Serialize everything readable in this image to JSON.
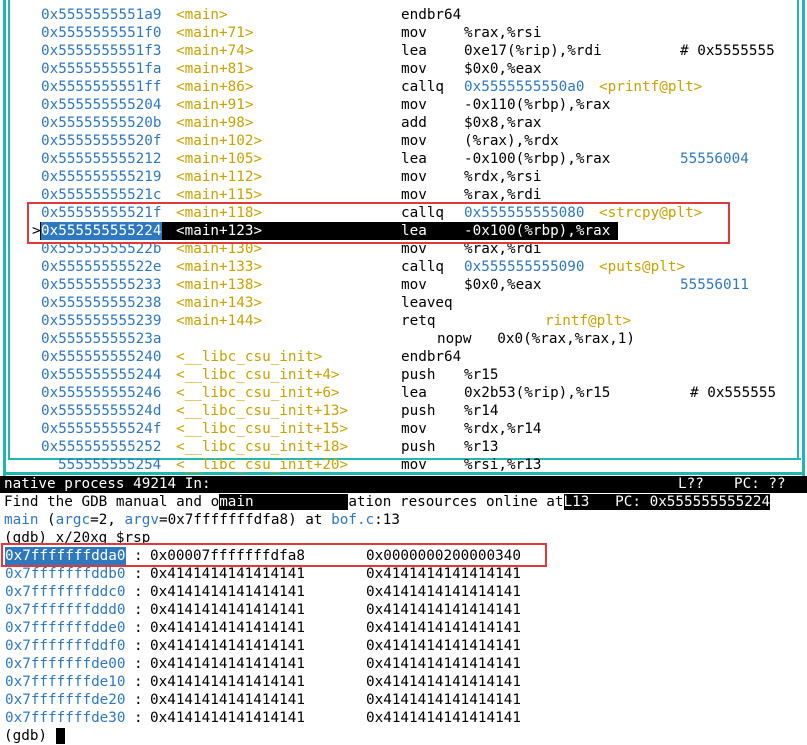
{
  "asm": {
    "lines": [
      {
        "addr": "0x5555555551a9",
        "sym": "<main>",
        "op": "endbr64",
        "args": "",
        "tgt": "",
        "symtgt": "",
        "cmt": ""
      },
      {
        "addr": "0x5555555551f0",
        "sym": "<main+71>",
        "op": "mov",
        "args": "%rax,%rsi",
        "tgt": "",
        "symtgt": "",
        "cmt": ""
      },
      {
        "addr": "0x5555555551f3",
        "sym": "<main+74>",
        "op": "lea",
        "args": "0xe17(%rip),%rdi",
        "tgt": "",
        "symtgt": "",
        "cmt": "# 0x5555555"
      },
      {
        "addr": "0x5555555551fa",
        "sym": "<main+81>",
        "op": "mov",
        "args": "$0x0,%eax",
        "tgt": "",
        "symtgt": "",
        "cmt": ""
      },
      {
        "addr": "0x5555555551ff",
        "sym": "<main+86>",
        "op": "callq",
        "args": "",
        "tgt": "0x5555555550a0",
        "symtgt": "<printf@plt>",
        "cmt": ""
      },
      {
        "addr": "0x555555555204",
        "sym": "<main+91>",
        "op": "mov",
        "args": "-0x110(%rbp),%rax",
        "tgt": "",
        "symtgt": "",
        "cmt": ""
      },
      {
        "addr": "0x55555555520b",
        "sym": "<main+98>",
        "op": "add",
        "args": "$0x8,%rax",
        "tgt": "",
        "symtgt": "",
        "cmt": ""
      },
      {
        "addr": "0x55555555520f",
        "sym": "<main+102>",
        "op": "mov",
        "args": "(%rax),%rdx",
        "tgt": "",
        "symtgt": "",
        "cmt": ""
      },
      {
        "addr": "0x555555555212",
        "sym": "<main+105>",
        "op": "lea",
        "args": "-0x100(%rbp),%rax",
        "tgt": "",
        "symtgt": "",
        "cmt": "55556004"
      },
      {
        "addr": "0x555555555219",
        "sym": "<main+112>",
        "op": "mov",
        "args": "%rdx,%rsi",
        "tgt": "",
        "symtgt": "",
        "cmt": ""
      },
      {
        "addr": "0x55555555521c",
        "sym": "<main+115>",
        "op": "mov",
        "args": "%rax,%rdi",
        "tgt": "",
        "symtgt": "",
        "cmt": ""
      },
      {
        "addr": "0x55555555521f",
        "sym": "<main+118>",
        "op": "callq",
        "args": "",
        "tgt": "0x555555555080",
        "symtgt": "<strcpy@plt>",
        "cmt": ""
      },
      {
        "addr": "0x555555555224",
        "sym": "<main+123>",
        "op": "lea",
        "args": "-0x100(%rbp),%rax",
        "tgt": "",
        "symtgt": "",
        "cmt": "",
        "current": true,
        "marker": ">"
      },
      {
        "addr": "0x55555555522b",
        "sym": "<main+130>",
        "op": "mov",
        "args": "%rax,%rdi",
        "tgt": "",
        "symtgt": "",
        "cmt": ""
      },
      {
        "addr": "0x55555555522e",
        "sym": "<main+133>",
        "op": "callq",
        "args": "",
        "tgt": "0x555555555090",
        "symtgt": "<puts@plt>",
        "cmt": ""
      },
      {
        "addr": "0x555555555233",
        "sym": "<main+138>",
        "op": "mov",
        "args": "$0x0,%eax",
        "tgt": "",
        "symtgt": "",
        "cmt": "55556011"
      },
      {
        "addr": "0x555555555238",
        "sym": "<main+143>",
        "op": "leaveq",
        "args": "",
        "tgt": "",
        "symtgt": "",
        "cmt": ""
      },
      {
        "addr": "0x555555555239",
        "sym": "<main+144>",
        "op": "retq",
        "args": "",
        "tgt": "",
        "symtgt": "rintf@plt>",
        "cmt": ""
      },
      {
        "addr": "0x55555555523a",
        "sym": "",
        "op": "",
        "args": "nopw   0x0(%rax,%rax,1)",
        "tgt": "",
        "symtgt": "",
        "cmt": ""
      },
      {
        "addr": "0x555555555240",
        "sym": "<__libc_csu_init>",
        "op": "endbr64",
        "args": "",
        "tgt": "",
        "symtgt": "",
        "cmt": ""
      },
      {
        "addr": "0x555555555244",
        "sym": "<__libc_csu_init+4>",
        "op": "push",
        "args": "%r15",
        "tgt": "",
        "symtgt": "",
        "cmt": ""
      },
      {
        "addr": "0x555555555246",
        "sym": "<__libc_csu_init+6>",
        "op": "lea",
        "args": "0x2b53(%rip),%r15",
        "tgt": "",
        "symtgt": "",
        "cmt": "# 0x555555"
      },
      {
        "addr": "0x55555555524d",
        "sym": "<__libc_csu_init+13>",
        "op": "push",
        "args": "%r14",
        "tgt": "",
        "symtgt": "",
        "cmt": ""
      },
      {
        "addr": "0x55555555524f",
        "sym": "<__libc_csu_init+15>",
        "op": "mov",
        "args": "%rdx,%r14",
        "tgt": "",
        "symtgt": "",
        "cmt": ""
      },
      {
        "addr": "0x555555555252",
        "sym": "<__libc_csu_init+18>",
        "op": "push",
        "args": "%r13",
        "tgt": "",
        "symtgt": "",
        "cmt": ""
      },
      {
        "addr": "555555555254",
        "sym": "<__libc_csu_init+20>",
        "op": "mov",
        "args": "%rsi,%r13",
        "tgt": "",
        "symtgt": "",
        "cmt": ""
      }
    ]
  },
  "status": {
    "process": "native process 49214 In:",
    "line": "L??",
    "pc": "PC: ??"
  },
  "console": {
    "msg_pre": "Find the GDB manual and o",
    "msg_main": "main",
    "msg_mid": "ation resources online at",
    "msg_line": "L13",
    "msg_pc": "PC: 0x555555555224",
    "frame_fn": "main",
    "frame_open": " (",
    "frame_argc": "argc",
    "frame_argc_val": "=2, ",
    "frame_argv": "argv",
    "frame_argv_val": "=0x7fffffffdfa8) at ",
    "frame_file": "bof.c",
    "frame_lineno": ":13",
    "command": "(gdb) x/20xg $rsp",
    "prompt": "(gdb) "
  },
  "memory": [
    {
      "addr": "0x7fffffffdda0",
      "v1": "0x00007fffffffdfa8",
      "v2": "0x0000000200000340"
    },
    {
      "addr": "0x7fffffffddb0",
      "v1": "0x4141414141414141",
      "v2": "0x4141414141414141"
    },
    {
      "addr": "0x7fffffffddc0",
      "v1": "0x4141414141414141",
      "v2": "0x4141414141414141"
    },
    {
      "addr": "0x7fffffffddd0",
      "v1": "0x4141414141414141",
      "v2": "0x4141414141414141"
    },
    {
      "addr": "0x7fffffffdde0",
      "v1": "0x4141414141414141",
      "v2": "0x4141414141414141"
    },
    {
      "addr": "0x7fffffffddf0",
      "v1": "0x4141414141414141",
      "v2": "0x4141414141414141"
    },
    {
      "addr": "0x7fffffffde00",
      "v1": "0x4141414141414141",
      "v2": "0x4141414141414141"
    },
    {
      "addr": "0x7fffffffde10",
      "v1": "0x4141414141414141",
      "v2": "0x4141414141414141"
    },
    {
      "addr": "0x7fffffffde20",
      "v1": "0x4141414141414141",
      "v2": "0x4141414141414141"
    },
    {
      "addr": "0x7fffffffde30",
      "v1": "0x4141414141414141",
      "v2": "0x4141414141414141"
    }
  ],
  "colors": {
    "address": "#2e78c0",
    "symbol": "#c9a100",
    "border": "#1fb8b0",
    "highlight_box": "#e0383b"
  }
}
